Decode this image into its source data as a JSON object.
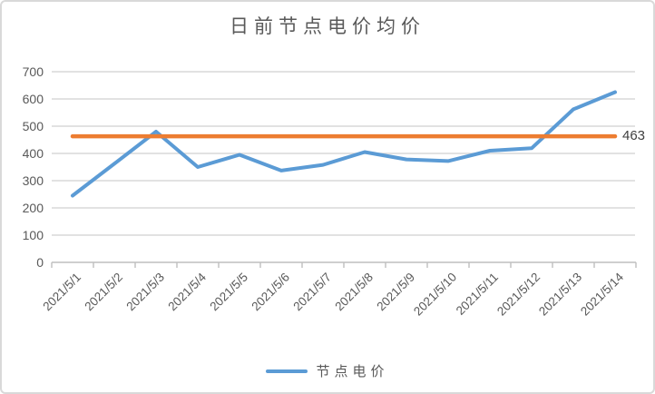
{
  "window": {
    "background": "#ffffff",
    "border_color": "#d9d9d9"
  },
  "chart_data": {
    "type": "line",
    "title": "日前节点电价均价",
    "categories": [
      "2021/5/1",
      "2021/5/2",
      "2021/5/3",
      "2021/5/4",
      "2021/5/5",
      "2021/5/6",
      "2021/5/7",
      "2021/5/8",
      "2021/5/9",
      "2021/5/10",
      "2021/5/11",
      "2021/5/12",
      "2021/5/13",
      "2021/5/14"
    ],
    "series": [
      {
        "name": "节点电价",
        "color": "#5b9bd5",
        "values": [
          245,
          362,
          480,
          350,
          395,
          337,
          358,
          405,
          378,
          372,
          410,
          419,
          562,
          625
        ]
      }
    ],
    "reference_line": {
      "value": 463,
      "label": "463",
      "color": "#ed7d31"
    },
    "ylim": [
      0,
      700
    ],
    "y_ticks": [
      0,
      100,
      200,
      300,
      400,
      500,
      600,
      700
    ],
    "xlabel": "",
    "ylabel": "",
    "grid": "horizontal",
    "gridline_color": "#d9d9d9",
    "axis_color": "#bfbfbf",
    "text_color": "#595959",
    "x_tick_rotation": -45,
    "legend_position": "bottom",
    "legend_entries": [
      "节点电价"
    ]
  }
}
